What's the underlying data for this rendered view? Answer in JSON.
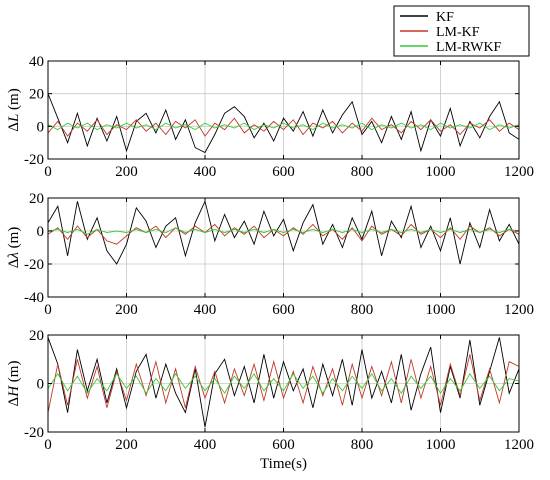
{
  "chart_data": [
    {
      "type": "line",
      "ylabel_prefix": "Δ",
      "ylabel_symbol": "L",
      "ylabel_unit": "(m)",
      "xlim": [
        0,
        1200
      ],
      "ylim": [
        -20,
        40
      ],
      "xticks": [
        "0",
        "200",
        "400",
        "600",
        "800",
        "1000",
        "1200"
      ],
      "yticks": [
        "-20",
        "0",
        "20",
        "40"
      ],
      "grid": true,
      "series": [
        {
          "name": "KF",
          "color": "#000000",
          "x": [
            0,
            25,
            50,
            75,
            100,
            125,
            150,
            175,
            200,
            225,
            250,
            275,
            300,
            325,
            350,
            375,
            400,
            425,
            450,
            475,
            500,
            525,
            550,
            575,
            600,
            625,
            650,
            675,
            700,
            725,
            750,
            775,
            800,
            825,
            850,
            875,
            900,
            925,
            950,
            975,
            1000,
            1025,
            1050,
            1075,
            1100,
            1125,
            1150,
            1175,
            1200
          ],
          "y": [
            20,
            5,
            -10,
            8,
            -12,
            5,
            -9,
            6,
            -15,
            3,
            8,
            -4,
            10,
            -8,
            4,
            -13,
            -16,
            -5,
            8,
            12,
            6,
            -7,
            2,
            -9,
            5,
            -3,
            9,
            -6,
            10,
            -4,
            7,
            15,
            -5,
            3,
            -10,
            6,
            -8,
            9,
            -15,
            4,
            -6,
            11,
            -12,
            3,
            -7,
            6,
            15,
            -4,
            -8
          ]
        },
        {
          "name": "LM-KF",
          "color": "#c0392b",
          "x": [
            0,
            25,
            50,
            75,
            100,
            125,
            150,
            175,
            200,
            225,
            250,
            275,
            300,
            325,
            350,
            375,
            400,
            425,
            450,
            475,
            500,
            525,
            550,
            575,
            600,
            625,
            650,
            675,
            700,
            725,
            750,
            775,
            800,
            825,
            850,
            875,
            900,
            925,
            950,
            975,
            1000,
            1025,
            1050,
            1075,
            1100,
            1125,
            1150,
            1175,
            1200
          ],
          "y": [
            -4,
            3,
            -6,
            2,
            -3,
            4,
            -5,
            1,
            -2,
            4,
            -3,
            2,
            -5,
            3,
            -1,
            4,
            -6,
            2,
            -2,
            5,
            -4,
            1,
            -3,
            3,
            -2,
            4,
            -5,
            2,
            -1,
            3,
            -4,
            2,
            -3,
            5,
            -2,
            1,
            -4,
            3,
            -2,
            4,
            -3,
            1,
            -5,
            2,
            -1,
            4,
            -3,
            2,
            -2
          ]
        },
        {
          "name": "LM-RWKF",
          "color": "#33cc33",
          "x": [
            0,
            25,
            50,
            75,
            100,
            125,
            150,
            175,
            200,
            225,
            250,
            275,
            300,
            325,
            350,
            375,
            400,
            425,
            450,
            475,
            500,
            525,
            550,
            575,
            600,
            625,
            650,
            675,
            700,
            725,
            750,
            775,
            800,
            825,
            850,
            875,
            900,
            925,
            950,
            975,
            1000,
            1025,
            1050,
            1075,
            1100,
            1125,
            1150,
            1175,
            1200
          ],
          "y": [
            1,
            -2,
            2,
            -1,
            2,
            -2,
            1,
            -1,
            2,
            -1,
            1,
            -2,
            2,
            -1,
            1,
            -2,
            2,
            -1,
            1,
            -1,
            2,
            -2,
            1,
            -1,
            2,
            -1,
            1,
            -2,
            2,
            -1,
            1,
            -1,
            2,
            -2,
            1,
            -1,
            2,
            -1,
            1,
            -2,
            2,
            -1,
            1,
            -1,
            2,
            -2,
            1,
            -1,
            1
          ]
        }
      ]
    },
    {
      "type": "line",
      "ylabel_prefix": "Δ",
      "ylabel_symbol": "λ",
      "ylabel_unit": "(m)",
      "xlim": [
        0,
        1200
      ],
      "ylim": [
        -40,
        20
      ],
      "xticks": [
        "0",
        "200",
        "400",
        "600",
        "800",
        "1000",
        "1200"
      ],
      "yticks": [
        "-40",
        "-20",
        "0",
        "20"
      ],
      "grid": true,
      "series": [
        {
          "name": "KF",
          "color": "#000000",
          "x": [
            0,
            25,
            50,
            75,
            100,
            125,
            150,
            175,
            200,
            225,
            250,
            275,
            300,
            325,
            350,
            375,
            400,
            425,
            450,
            475,
            500,
            525,
            550,
            575,
            600,
            625,
            650,
            675,
            700,
            725,
            750,
            775,
            800,
            825,
            850,
            875,
            900,
            925,
            950,
            975,
            1000,
            1025,
            1050,
            1075,
            1100,
            1125,
            1150,
            1175,
            1200
          ],
          "y": [
            5,
            15,
            -15,
            18,
            -5,
            8,
            -12,
            -20,
            -8,
            14,
            6,
            -10,
            3,
            8,
            -15,
            5,
            18,
            -6,
            10,
            -4,
            6,
            -8,
            12,
            -3,
            7,
            -12,
            5,
            16,
            -8,
            4,
            -10,
            8,
            -5,
            12,
            -15,
            6,
            -4,
            15,
            -10,
            3,
            -12,
            8,
            -20,
            5,
            -10,
            13,
            -6,
            4,
            -8
          ]
        },
        {
          "name": "LM-KF",
          "color": "#c0392b",
          "x": [
            0,
            25,
            50,
            75,
            100,
            125,
            150,
            175,
            200,
            225,
            250,
            275,
            300,
            325,
            350,
            375,
            400,
            425,
            450,
            475,
            500,
            525,
            550,
            575,
            600,
            625,
            650,
            675,
            700,
            725,
            750,
            775,
            800,
            825,
            850,
            875,
            900,
            925,
            950,
            975,
            1000,
            1025,
            1050,
            1075,
            1100,
            1125,
            1150,
            1175,
            1200
          ],
          "y": [
            -2,
            2,
            -5,
            3,
            -4,
            1,
            -6,
            -8,
            -3,
            2,
            -1,
            3,
            -4,
            2,
            -2,
            3,
            -1,
            4,
            -3,
            2,
            -2,
            3,
            -4,
            1,
            -3,
            2,
            -2,
            4,
            -3,
            1,
            -5,
            2,
            -6,
            3,
            -2,
            1,
            -3,
            4,
            -2,
            1,
            -4,
            2,
            -5,
            3,
            -1,
            2,
            -3,
            1,
            -2
          ]
        },
        {
          "name": "LM-RWKF",
          "color": "#33cc33",
          "x": [
            0,
            25,
            50,
            75,
            100,
            125,
            150,
            175,
            200,
            225,
            250,
            275,
            300,
            325,
            350,
            375,
            400,
            425,
            450,
            475,
            500,
            525,
            550,
            575,
            600,
            625,
            650,
            675,
            700,
            725,
            750,
            775,
            800,
            825,
            850,
            875,
            900,
            925,
            950,
            975,
            1000,
            1025,
            1050,
            1075,
            1100,
            1125,
            1150,
            1175,
            1200
          ],
          "y": [
            0,
            1,
            -1,
            1,
            -2,
            1,
            -1,
            0,
            -1,
            1,
            -1,
            1,
            -1,
            2,
            -1,
            1,
            -1,
            1,
            -1,
            1,
            -1,
            1,
            -1,
            1,
            -1,
            1,
            -1,
            1,
            -1,
            1,
            -1,
            1,
            -1,
            1,
            -1,
            1,
            -1,
            1,
            -1,
            1,
            -1,
            1,
            -1,
            1,
            -1,
            1,
            -1,
            1,
            0
          ]
        }
      ]
    },
    {
      "type": "line",
      "ylabel_prefix": "Δ",
      "ylabel_symbol": "H",
      "ylabel_unit": "(m)",
      "xlabel": "Time(s)",
      "xlim": [
        0,
        1200
      ],
      "ylim": [
        -20,
        20
      ],
      "xticks": [
        "0",
        "200",
        "400",
        "600",
        "800",
        "1000",
        "1200"
      ],
      "yticks": [
        "-20",
        "0",
        "20"
      ],
      "grid": true,
      "series": [
        {
          "name": "KF",
          "color": "#000000",
          "x": [
            0,
            25,
            50,
            75,
            100,
            125,
            150,
            175,
            200,
            225,
            250,
            275,
            300,
            325,
            350,
            375,
            400,
            425,
            450,
            475,
            500,
            525,
            550,
            575,
            600,
            625,
            650,
            675,
            700,
            725,
            750,
            775,
            800,
            825,
            850,
            875,
            900,
            925,
            950,
            975,
            1000,
            1025,
            1050,
            1075,
            1100,
            1125,
            1150,
            1175,
            1200
          ],
          "y": [
            19,
            8,
            -12,
            14,
            -3,
            10,
            -8,
            6,
            -10,
            5,
            12,
            -6,
            8,
            -4,
            -12,
            6,
            -18,
            4,
            10,
            -5,
            7,
            -8,
            12,
            -6,
            9,
            -3,
            6,
            -10,
            8,
            -5,
            10,
            -9,
            14,
            -6,
            5,
            -8,
            12,
            -11,
            4,
            15,
            -12,
            7,
            -6,
            18,
            -9,
            5,
            19,
            -4,
            6
          ]
        },
        {
          "name": "LM-KF",
          "color": "#c0392b",
          "x": [
            0,
            25,
            50,
            75,
            100,
            125,
            150,
            175,
            200,
            225,
            250,
            275,
            300,
            325,
            350,
            375,
            400,
            425,
            450,
            475,
            500,
            525,
            550,
            575,
            600,
            625,
            650,
            675,
            700,
            725,
            750,
            775,
            800,
            825,
            850,
            875,
            900,
            925,
            950,
            975,
            1000,
            1025,
            1050,
            1075,
            1100,
            1125,
            1150,
            1175,
            1200
          ],
          "y": [
            -12,
            8,
            -9,
            10,
            -6,
            7,
            -10,
            5,
            -7,
            8,
            -5,
            9,
            -8,
            6,
            -10,
            7,
            -6,
            5,
            -8,
            6,
            -5,
            8,
            -7,
            9,
            -6,
            5,
            -8,
            7,
            -5,
            6,
            -9,
            8,
            -6,
            7,
            -5,
            9,
            -8,
            10,
            -6,
            7,
            -9,
            8,
            -5,
            12,
            -7,
            6,
            -8,
            9,
            7
          ]
        },
        {
          "name": "LM-RWKF",
          "color": "#33cc33",
          "x": [
            0,
            25,
            50,
            75,
            100,
            125,
            150,
            175,
            200,
            225,
            250,
            275,
            300,
            325,
            350,
            375,
            400,
            425,
            450,
            475,
            500,
            525,
            550,
            575,
            600,
            625,
            650,
            675,
            700,
            725,
            750,
            775,
            800,
            825,
            850,
            875,
            900,
            925,
            950,
            975,
            1000,
            1025,
            1050,
            1075,
            1100,
            1125,
            1150,
            1175,
            1200
          ],
          "y": [
            -2,
            4,
            -3,
            3,
            -4,
            2,
            -3,
            4,
            -2,
            3,
            -4,
            2,
            -3,
            4,
            -2,
            3,
            -3,
            2,
            -4,
            3,
            -2,
            4,
            -3,
            2,
            -3,
            4,
            -2,
            3,
            -4,
            2,
            -3,
            3,
            -2,
            4,
            -3,
            2,
            -4,
            3,
            -2,
            3,
            -4,
            2,
            -3,
            4,
            -2,
            3,
            -3,
            2,
            1
          ]
        }
      ]
    }
  ],
  "legend": {
    "position": "top-right",
    "entries": [
      {
        "label": "KF",
        "color": "#000000"
      },
      {
        "label": "LM-KF",
        "color": "#c0392b"
      },
      {
        "label": "LM-RWKF",
        "color": "#33cc33"
      }
    ]
  }
}
